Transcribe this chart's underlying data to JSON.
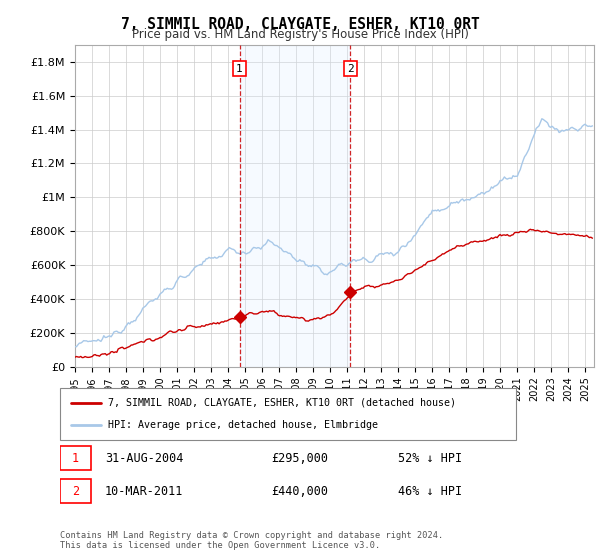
{
  "title": "7, SIMMIL ROAD, CLAYGATE, ESHER, KT10 0RT",
  "subtitle": "Price paid vs. HM Land Registry's House Price Index (HPI)",
  "ylabel_ticks": [
    "£0",
    "£200K",
    "£400K",
    "£600K",
    "£800K",
    "£1M",
    "£1.2M",
    "£1.4M",
    "£1.6M",
    "£1.8M"
  ],
  "ytick_values": [
    0,
    200000,
    400000,
    600000,
    800000,
    1000000,
    1200000,
    1400000,
    1600000,
    1800000
  ],
  "ylim": [
    0,
    1900000
  ],
  "xlim_start": 1995.0,
  "xlim_end": 2025.5,
  "hpi_color": "#a8c8e8",
  "sale_color": "#cc0000",
  "dashed_line_color": "#cc0000",
  "shade_color": "#ddeeff",
  "sale1_date": "31-AUG-2004",
  "sale1_price": "£295,000",
  "sale1_hpi": "52% ↓ HPI",
  "sale1_x": 2004.67,
  "sale1_y": 295000,
  "sale2_date": "10-MAR-2011",
  "sale2_price": "£440,000",
  "sale2_hpi": "46% ↓ HPI",
  "sale2_x": 2011.19,
  "sale2_y": 440000,
  "legend1_label": "7, SIMMIL ROAD, CLAYGATE, ESHER, KT10 0RT (detached house)",
  "legend2_label": "HPI: Average price, detached house, Elmbridge",
  "footer": "Contains HM Land Registry data © Crown copyright and database right 2024.\nThis data is licensed under the Open Government Licence v3.0.",
  "background_color": "#ffffff",
  "grid_color": "#cccccc"
}
